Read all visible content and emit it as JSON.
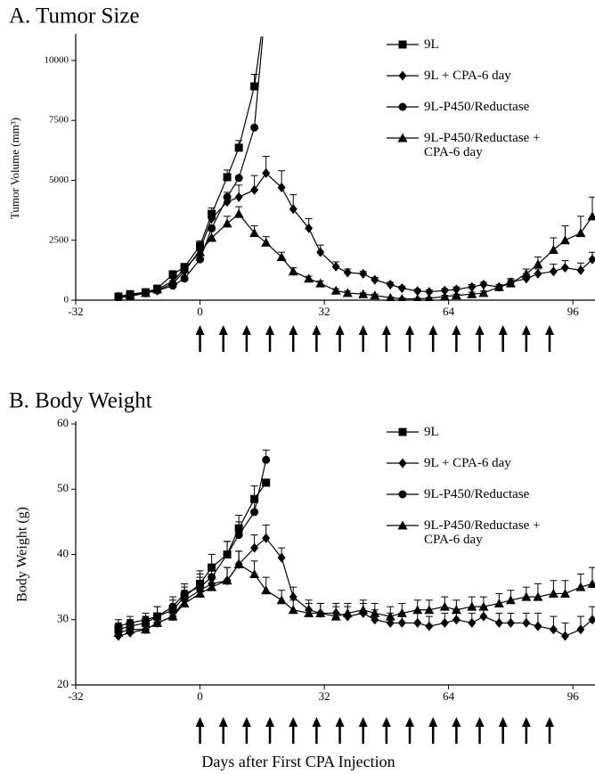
{
  "chart_data": [
    {
      "type": "line",
      "title": "A. Tumor Size",
      "ylabel": "Tumor Volume (mm³)",
      "x": [
        -21,
        -18,
        -14,
        -11,
        -7,
        -4,
        0,
        3,
        7,
        10,
        14,
        17,
        21,
        24,
        28,
        31,
        35,
        38,
        42,
        45,
        49,
        52,
        56,
        59,
        63,
        66,
        70,
        73,
        77,
        80,
        84,
        87,
        91,
        94,
        98,
        101
      ],
      "xlim": [
        -32,
        101
      ],
      "xticks": [
        -32,
        0,
        32,
        64,
        96
      ],
      "ylim": [
        0,
        11000
      ],
      "yticks": [
        0,
        2500,
        5000,
        7500,
        10000
      ],
      "arrow_days": [
        0,
        6,
        12,
        18,
        24,
        30,
        36,
        42,
        48,
        54,
        60,
        66,
        72,
        78,
        84,
        90
      ],
      "series": [
        {
          "name": "9L",
          "marker": "square",
          "color": "#000000",
          "values": [
            150,
            250,
            330,
            480,
            1080,
            1380,
            2270,
            3600,
            5130,
            6360,
            8920,
            12500,
            null,
            null,
            null,
            null,
            null,
            null,
            null,
            null,
            null,
            null,
            null,
            null,
            null,
            null,
            null,
            null,
            null,
            null,
            null,
            null,
            null,
            null,
            null,
            null
          ],
          "errors": [
            30,
            30,
            40,
            60,
            100,
            150,
            200,
            250,
            300,
            300,
            500,
            null,
            null,
            null,
            null,
            null,
            null,
            null,
            null,
            null,
            null,
            null,
            null,
            null,
            null,
            null,
            null,
            null,
            null,
            null,
            null,
            null,
            null,
            null,
            null,
            null
          ]
        },
        {
          "name": "9L + CPA-6 day",
          "marker": "diamond",
          "color": "#000000",
          "values": [
            150,
            200,
            300,
            400,
            700,
            1200,
            2100,
            3400,
            4100,
            4300,
            4600,
            5300,
            4700,
            3800,
            3000,
            2000,
            1400,
            1150,
            1100,
            850,
            650,
            500,
            380,
            350,
            400,
            450,
            550,
            650,
            550,
            750,
            900,
            1100,
            1200,
            1350,
            1250,
            1700
          ],
          "errors": [
            50,
            50,
            50,
            80,
            100,
            150,
            200,
            300,
            400,
            500,
            600,
            700,
            700,
            600,
            400,
            300,
            200,
            150,
            100,
            100,
            100,
            80,
            80,
            80,
            80,
            100,
            100,
            100,
            100,
            150,
            200,
            200,
            300,
            300,
            300,
            300
          ]
        },
        {
          "name": "9L-P450/Reductase",
          "marker": "circle",
          "color": "#000000",
          "values": [
            100,
            150,
            300,
            400,
            600,
            900,
            1700,
            3000,
            4300,
            5100,
            7200,
            12500,
            null,
            null,
            null,
            null,
            null,
            null,
            null,
            null,
            null,
            null,
            null,
            null,
            null,
            null,
            null,
            null,
            null,
            null,
            null,
            null,
            null,
            null,
            null,
            null
          ]
        },
        {
          "name": "9L-P450/Reductase + CPA-6 day",
          "marker": "triangle",
          "color": "#000000",
          "values": [
            150,
            200,
            300,
            450,
            800,
            1300,
            2000,
            2600,
            3200,
            3600,
            2800,
            2400,
            1800,
            1200,
            900,
            700,
            400,
            300,
            250,
            200,
            100,
            60,
            50,
            80,
            150,
            200,
            250,
            300,
            550,
            700,
            1100,
            1500,
            2100,
            2500,
            2800,
            3500
          ],
          "errors": [
            50,
            50,
            50,
            80,
            100,
            150,
            200,
            300,
            300,
            300,
            300,
            250,
            200,
            150,
            100,
            100,
            80,
            80,
            50,
            50,
            30,
            30,
            30,
            30,
            50,
            50,
            80,
            80,
            100,
            150,
            200,
            300,
            500,
            600,
            700,
            800
          ]
        }
      ]
    },
    {
      "type": "line",
      "title": "B. Body Weight",
      "ylabel": "Body Weight (g)",
      "xlabel": "Days after First CPA Injection",
      "x": [
        -21,
        -18,
        -14,
        -11,
        -7,
        -4,
        0,
        3,
        7,
        10,
        14,
        17,
        21,
        24,
        28,
        31,
        35,
        38,
        42,
        45,
        49,
        52,
        56,
        59,
        63,
        66,
        70,
        73,
        77,
        80,
        84,
        87,
        91,
        94,
        98,
        101
      ],
      "xlim": [
        -32,
        101
      ],
      "xticks": [
        -32,
        0,
        32,
        64,
        96
      ],
      "ylim": [
        20,
        60
      ],
      "yticks": [
        20,
        30,
        40,
        50,
        60
      ],
      "arrow_days": [
        0,
        6,
        12,
        18,
        24,
        30,
        36,
        42,
        48,
        54,
        60,
        66,
        72,
        78,
        84,
        90
      ],
      "series": [
        {
          "name": "9L",
          "marker": "square",
          "color": "#000000",
          "values": [
            28.5,
            29,
            29.5,
            30.5,
            31.5,
            33.5,
            35.5,
            38,
            40,
            44,
            48.5,
            51,
            null,
            null,
            null,
            null,
            null,
            null,
            null,
            null,
            null,
            null,
            null,
            null,
            null,
            null,
            null,
            null,
            null,
            null,
            null,
            null,
            null,
            null,
            null,
            null
          ],
          "errors": [
            1,
            1,
            1,
            1.5,
            1.5,
            1.5,
            2,
            2,
            2,
            2,
            2,
            null,
            null,
            null,
            null,
            null,
            null,
            null,
            null,
            null,
            null,
            null,
            null,
            null,
            null,
            null,
            null,
            null,
            null,
            null,
            null,
            null,
            null,
            null,
            null,
            null
          ]
        },
        {
          "name": "9L + CPA-6 day",
          "marker": "diamond",
          "color": "#000000",
          "values": [
            27.5,
            28,
            28.5,
            29.5,
            30.5,
            33,
            34.5,
            35.5,
            36,
            38.5,
            41,
            42.5,
            39.5,
            33.5,
            31.5,
            31,
            31,
            30.5,
            31,
            30,
            29.5,
            29.5,
            29.5,
            29,
            29.5,
            30,
            29.5,
            30.5,
            29.5,
            29.5,
            29.5,
            29,
            28.5,
            27.5,
            28.5,
            30
          ],
          "errors": [
            1,
            1,
            1,
            1.5,
            1.5,
            1.5,
            2,
            2,
            2,
            2,
            2,
            2,
            1.5,
            1.5,
            1.5,
            1.5,
            1.5,
            1.5,
            1.5,
            1.5,
            1.5,
            1.5,
            1.5,
            1.5,
            1.5,
            1.5,
            1.5,
            1.5,
            1.5,
            1.5,
            1.5,
            2,
            2,
            2,
            2,
            2
          ]
        },
        {
          "name": "9L-P450/Reductase",
          "marker": "circle",
          "color": "#000000",
          "values": [
            29,
            29.5,
            30,
            30.5,
            32,
            34,
            35,
            36.5,
            40,
            43,
            46.5,
            54.5,
            null,
            null,
            null,
            null,
            null,
            null,
            null,
            null,
            null,
            null,
            null,
            null,
            null,
            null,
            null,
            null,
            null,
            null,
            null,
            null,
            null,
            null,
            null,
            null
          ],
          "errors": [
            1,
            1,
            1,
            1.5,
            1.5,
            1.5,
            2,
            2,
            2,
            2,
            2,
            1.5,
            null,
            null,
            null,
            null,
            null,
            null,
            null,
            null,
            null,
            null,
            null,
            null,
            null,
            null,
            null,
            null,
            null,
            null,
            null,
            null,
            null,
            null,
            null,
            null
          ]
        },
        {
          "name": "9L-P450/Reductase + CPA-6 day",
          "marker": "triangle",
          "color": "#000000",
          "values": [
            28,
            28.5,
            28.5,
            29.5,
            30.5,
            32.5,
            34,
            35,
            36,
            38.5,
            37,
            34.5,
            33,
            31.5,
            31,
            31,
            30.5,
            31,
            31.5,
            31,
            30.5,
            31,
            31.5,
            31.5,
            32,
            31.5,
            32,
            32,
            32.5,
            33,
            33.5,
            33.5,
            34,
            34,
            35,
            35.5
          ],
          "errors": [
            1,
            1,
            1,
            1.5,
            1.5,
            1.5,
            2,
            2,
            2,
            2,
            2,
            2,
            1.5,
            1.5,
            1.5,
            1.5,
            1.5,
            1.5,
            1.5,
            1.5,
            1.5,
            1.5,
            1.5,
            1.5,
            1.5,
            1.5,
            1.5,
            1.5,
            1.5,
            1.5,
            1.5,
            2,
            2,
            2,
            2,
            2.5
          ]
        }
      ]
    }
  ]
}
